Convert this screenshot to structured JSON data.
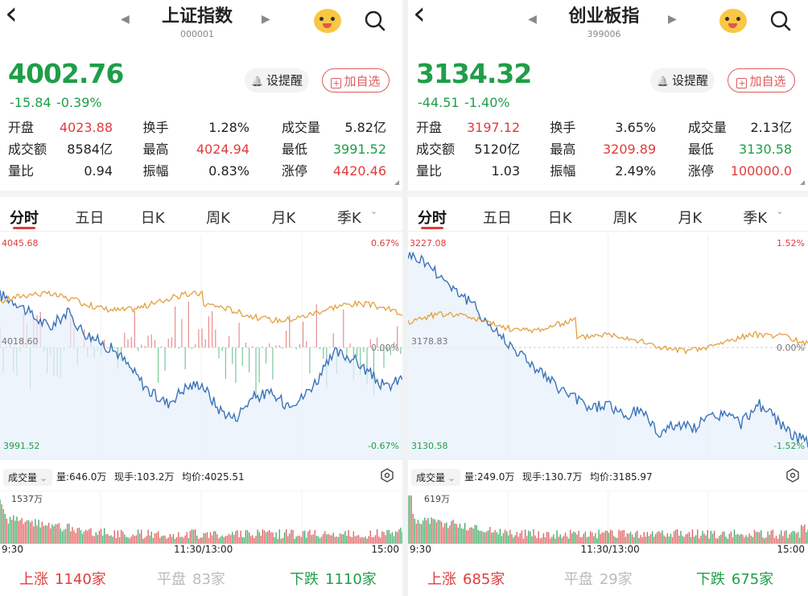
{
  "panels": [
    {
      "name": "上证指数",
      "code": "000001",
      "price": "4002.76",
      "change": "-15.84",
      "change_pct": "-0.39%",
      "remind_label": "设提醒",
      "add_label": "加自选",
      "stats": [
        {
          "label": "开盘",
          "value": "4023.88",
          "color": "red"
        },
        {
          "label": "换手",
          "value": "1.28%",
          "color": "dark"
        },
        {
          "label": "成交量",
          "value": "5.82亿",
          "color": "dark"
        },
        {
          "label": "成交额",
          "value": "8584亿",
          "color": "dark"
        },
        {
          "label": "最高",
          "value": "4024.94",
          "color": "red"
        },
        {
          "label": "最低",
          "value": "3991.52",
          "color": "green"
        },
        {
          "label": "量比",
          "value": "0.94",
          "color": "dark"
        },
        {
          "label": "振幅",
          "value": "0.83%",
          "color": "dark"
        },
        {
          "label": "涨停",
          "value": "4420.46",
          "color": "red"
        }
      ],
      "tabs": [
        "分时",
        "五日",
        "日K",
        "周K",
        "月K",
        "季K"
      ],
      "chart": {
        "top_price": "4045.68",
        "top_pct": "0.67%",
        "mid_price": "4018.60",
        "mid_pct": "0.00%",
        "bottom_price": "3991.52",
        "bottom_pct": "-0.67%"
      },
      "volume_bar": {
        "selector": "成交量",
        "vol": "量:646.0万",
        "current": "现手:103.2万",
        "avg": "均价:4025.51",
        "max": "1537万"
      },
      "times": [
        "9:30",
        "11:30/13:00",
        "15:00"
      ],
      "breadth": {
        "up_label": "上涨",
        "up": "1140家",
        "flat_label": "平盘",
        "flat": "83家",
        "down_label": "下跌",
        "down": "1110家"
      }
    },
    {
      "name": "创业板指",
      "code": "399006",
      "price": "3134.32",
      "change": "-44.51",
      "change_pct": "-1.40%",
      "remind_label": "设提醒",
      "add_label": "加自选",
      "stats": [
        {
          "label": "开盘",
          "value": "3197.12",
          "color": "red"
        },
        {
          "label": "换手",
          "value": "3.65%",
          "color": "dark"
        },
        {
          "label": "成交量",
          "value": "2.13亿",
          "color": "dark"
        },
        {
          "label": "成交额",
          "value": "5120亿",
          "color": "dark"
        },
        {
          "label": "最高",
          "value": "3209.89",
          "color": "red"
        },
        {
          "label": "最低",
          "value": "3130.58",
          "color": "green"
        },
        {
          "label": "量比",
          "value": "1.03",
          "color": "dark"
        },
        {
          "label": "振幅",
          "value": "2.49%",
          "color": "dark"
        },
        {
          "label": "涨停",
          "value": "100000.0",
          "color": "red"
        }
      ],
      "tabs": [
        "分时",
        "五日",
        "日K",
        "周K",
        "月K",
        "季K"
      ],
      "chart": {
        "top_price": "3227.08",
        "top_pct": "1.52%",
        "mid_price": "3178.83",
        "mid_pct": "0.00%",
        "bottom_price": "3130.58",
        "bottom_pct": "-1.52%"
      },
      "volume_bar": {
        "selector": "成交量",
        "vol": "量:249.0万",
        "current": "现手:130.7万",
        "avg": "均价:3185.97",
        "max": "619万"
      },
      "times": [
        "9:30",
        "11:30/13:00",
        "15:00"
      ],
      "breadth": {
        "up_label": "上涨",
        "up": "685家",
        "flat_label": "平盘",
        "flat": "29家",
        "down_label": "下跌",
        "down": "675家"
      }
    }
  ],
  "colors": {
    "up": "#e03c3c",
    "down": "#1f9e48",
    "price_line": "#3b73b9",
    "avg_line": "#e3a040"
  }
}
